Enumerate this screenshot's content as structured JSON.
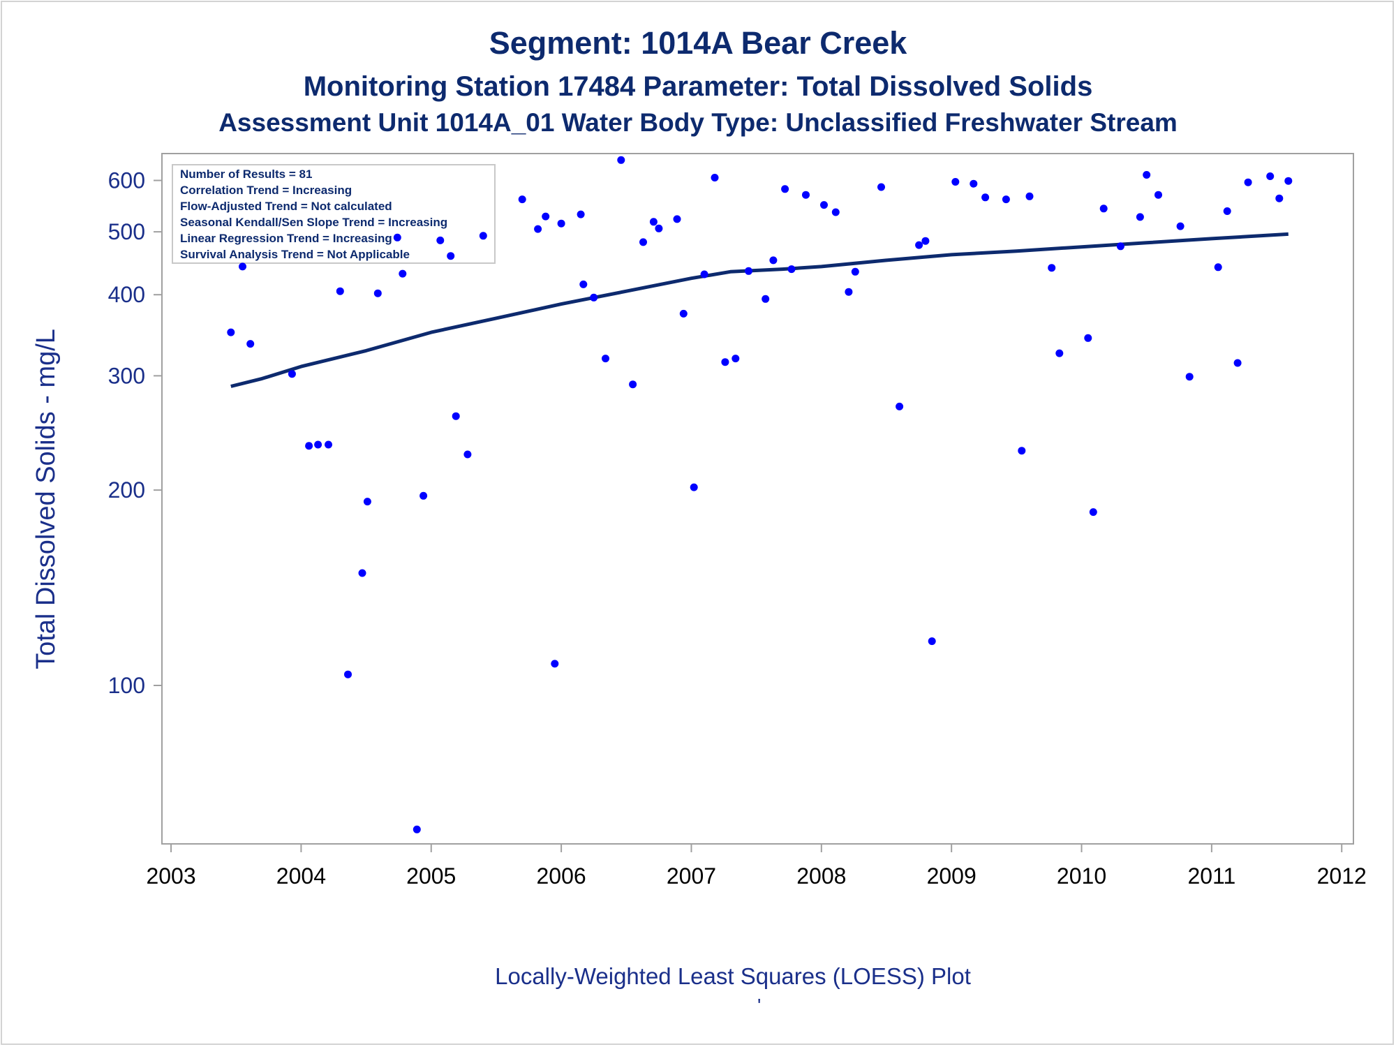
{
  "titles": {
    "title": "Segment: 1014A  Bear Creek",
    "subtitle": "Monitoring Station 17484 Parameter: Total Dissolved Solids",
    "subtitle2": "Assessment Unit 1014A_01   Water Body Type: Unclassified Freshwater Stream"
  },
  "footnote": "Locally-Weighted Least Squares (LOESS) Plot",
  "footnote_mark": "'",
  "inset_lines": [
    "Number of Results = 81",
    "Correlation Trend = Increasing",
    "Flow-Adjusted Trend = Not calculated",
    "Seasonal Kendall/Sen Slope Trend = Increasing",
    "Linear Regression Trend = Increasing",
    "Survival Analysis Trend = Not Applicable"
  ],
  "colors": {
    "points": "#0000ff",
    "loess": "#0d2a6e",
    "title": "#0d2a6e",
    "axis_labels": "#1a2f8a",
    "frame": "#a0a0a0"
  },
  "chart_data": {
    "type": "scatter",
    "xlabel": "",
    "ylabel": "Total Dissolved Solids - mg/L",
    "yscale": "log",
    "xlim": [
      2002.93,
      2012.09
    ],
    "ylim": [
      57,
      660
    ],
    "x_ticks": [
      2003,
      2004,
      2005,
      2006,
      2007,
      2008,
      2009,
      2010,
      2011,
      2012
    ],
    "x_tick_labels": [
      "2003",
      "2004",
      "2005",
      "2006",
      "2007",
      "2008",
      "2009",
      "2010",
      "2011",
      "2012"
    ],
    "y_ticks": [
      100,
      200,
      300,
      400,
      500,
      600
    ],
    "y_tick_labels": [
      "100",
      "200",
      "300",
      "400",
      "500",
      "600"
    ],
    "legend": "top-left",
    "series": [
      {
        "type": "scatter",
        "points": [
          [
            2003.46,
            350
          ],
          [
            2003.55,
            442
          ],
          [
            2003.61,
            336
          ],
          [
            2003.93,
            302
          ],
          [
            2004.06,
            234
          ],
          [
            2004.13,
            235
          ],
          [
            2004.21,
            235
          ],
          [
            2004.3,
            405
          ],
          [
            2004.36,
            104
          ],
          [
            2004.47,
            149
          ],
          [
            2004.51,
            192
          ],
          [
            2004.59,
            402
          ],
          [
            2004.74,
            490
          ],
          [
            2004.78,
            431
          ],
          [
            2004.89,
            60
          ],
          [
            2004.94,
            196
          ],
          [
            2005.07,
            485
          ],
          [
            2005.15,
            459
          ],
          [
            2005.19,
            260
          ],
          [
            2005.28,
            227
          ],
          [
            2005.4,
            493
          ],
          [
            2005.7,
            561
          ],
          [
            2005.82,
            505
          ],
          [
            2005.88,
            528
          ],
          [
            2005.95,
            108
          ],
          [
            2006.0,
            515
          ],
          [
            2006.15,
            532
          ],
          [
            2006.17,
            415
          ],
          [
            2006.25,
            396
          ],
          [
            2006.34,
            319
          ],
          [
            2006.46,
            645
          ],
          [
            2006.55,
            291
          ],
          [
            2006.63,
            482
          ],
          [
            2006.71,
            518
          ],
          [
            2006.75,
            506
          ],
          [
            2006.89,
            523
          ],
          [
            2006.94,
            374
          ],
          [
            2007.02,
            202
          ],
          [
            2007.1,
            430
          ],
          [
            2007.18,
            606
          ],
          [
            2007.26,
            315
          ],
          [
            2007.34,
            319
          ],
          [
            2007.44,
            435
          ],
          [
            2007.57,
            394
          ],
          [
            2007.63,
            452
          ],
          [
            2007.72,
            582
          ],
          [
            2007.77,
            438
          ],
          [
            2007.88,
            570
          ],
          [
            2008.02,
            550
          ],
          [
            2008.11,
            536
          ],
          [
            2008.21,
            404
          ],
          [
            2008.26,
            434
          ],
          [
            2008.46,
            586
          ],
          [
            2008.6,
            269
          ],
          [
            2008.75,
            477
          ],
          [
            2008.8,
            484
          ],
          [
            2008.85,
            117
          ],
          [
            2009.03,
            597
          ],
          [
            2009.17,
            593
          ],
          [
            2009.26,
            565
          ],
          [
            2009.42,
            561
          ],
          [
            2009.54,
            230
          ],
          [
            2009.6,
            567
          ],
          [
            2009.77,
            440
          ],
          [
            2009.83,
            325
          ],
          [
            2010.05,
            343
          ],
          [
            2010.09,
            185
          ],
          [
            2010.17,
            543
          ],
          [
            2010.3,
            475
          ],
          [
            2010.45,
            527
          ],
          [
            2010.5,
            612
          ],
          [
            2010.59,
            570
          ],
          [
            2010.76,
            510
          ],
          [
            2010.83,
            299
          ],
          [
            2011.05,
            441
          ],
          [
            2011.12,
            538
          ],
          [
            2011.2,
            314
          ],
          [
            2011.28,
            596
          ],
          [
            2011.45,
            609
          ],
          [
            2011.52,
            563
          ],
          [
            2011.59,
            599
          ]
        ]
      },
      {
        "type": "line",
        "points": [
          [
            2003.46,
            289
          ],
          [
            2003.7,
            297
          ],
          [
            2004.0,
            310
          ],
          [
            2004.5,
            328
          ],
          [
            2005.0,
            350
          ],
          [
            2005.5,
            368
          ],
          [
            2006.0,
            387
          ],
          [
            2006.5,
            405
          ],
          [
            2007.0,
            424
          ],
          [
            2007.3,
            434
          ],
          [
            2007.7,
            438
          ],
          [
            2008.0,
            442
          ],
          [
            2008.5,
            452
          ],
          [
            2009.0,
            461
          ],
          [
            2009.5,
            467
          ],
          [
            2010.0,
            474
          ],
          [
            2010.5,
            481
          ],
          [
            2011.0,
            488
          ],
          [
            2011.59,
            496
          ]
        ]
      }
    ]
  }
}
